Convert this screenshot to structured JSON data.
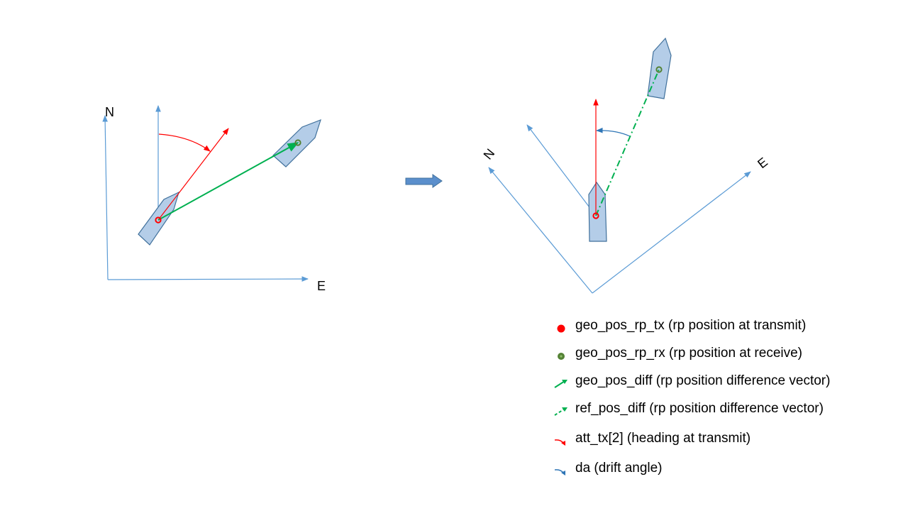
{
  "left_panel": {
    "axis_north_label": "N",
    "axis_east_label": "E"
  },
  "right_panel": {
    "axis_north_label": "N",
    "axis_east_label": "E"
  },
  "colors": {
    "axis": "#5b9bd5",
    "heading": "#ff0000",
    "pos_diff": "#00b050",
    "drift": "#2e75b6",
    "ship_fill": "#b4cde8",
    "ship_stroke": "#41719c",
    "tx_point": "#ff0000",
    "rx_point": "#548235",
    "transition_arrow": "#5b8fcc"
  },
  "legend": [
    {
      "icon": "red-dot-icon",
      "text": "geo_pos_rp_tx (rp position at transmit)"
    },
    {
      "icon": "green-dot-icon",
      "text": "geo_pos_rp_rx (rp position at receive)"
    },
    {
      "icon": "green-solid-arrow-icon",
      "text": "geo_pos_diff (rp position difference vector)"
    },
    {
      "icon": "green-dashed-arrow-icon",
      "text": "ref_pos_diff (rp position difference vector)"
    },
    {
      "icon": "red-curved-arrow-icon",
      "text": "att_tx[2] (heading at transmit)"
    },
    {
      "icon": "blue-curved-arrow-icon",
      "text": "da  (drift angle)"
    }
  ]
}
